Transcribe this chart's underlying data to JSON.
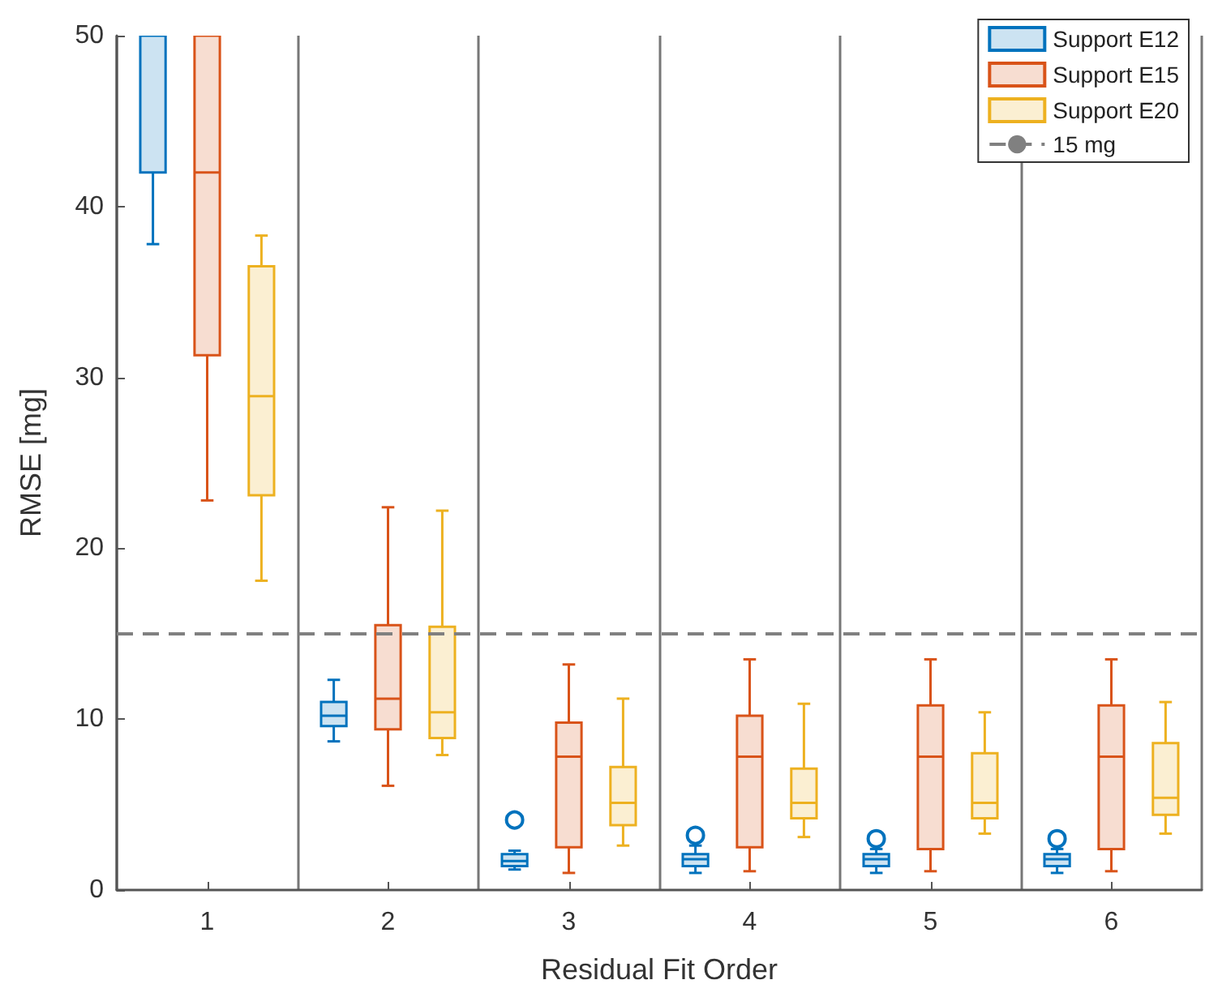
{
  "chart_data": {
    "type": "box",
    "xlabel": "Residual Fit Order",
    "ylabel": "RMSE [mg]",
    "categories": [
      "1",
      "2",
      "3",
      "4",
      "5",
      "6"
    ],
    "ylim": [
      0,
      50
    ],
    "yticks": [
      0,
      10,
      20,
      30,
      40,
      50
    ],
    "grid": "x",
    "legend": "top right",
    "ref_lines": [
      {
        "axis": "y",
        "value": 15,
        "label": "15 mg",
        "color": "#808080",
        "line_style": "dashed"
      }
    ],
    "series": [
      {
        "name": "Support E12",
        "color": "#0072bd",
        "boxes": [
          {
            "low": 37.8,
            "q1": 42,
            "q3": 50,
            "high": 50
          },
          {
            "low": 8.7,
            "q1": 9.6,
            "median": 10.2,
            "q3": 11.0,
            "high": 12.3
          },
          {
            "low": 1.2,
            "q1": 1.4,
            "median": 1.7,
            "q3": 2.1,
            "high": 2.3,
            "outliers": [
              4.1
            ]
          },
          {
            "low": 1.0,
            "q1": 1.4,
            "median": 1.8,
            "q3": 2.1,
            "high": 2.6,
            "outliers": [
              3.2
            ]
          },
          {
            "low": 1.0,
            "q1": 1.4,
            "median": 1.8,
            "q3": 2.1,
            "high": 2.4,
            "outliers": [
              3.0
            ]
          },
          {
            "low": 1.0,
            "q1": 1.4,
            "median": 1.8,
            "q3": 2.1,
            "high": 2.4,
            "outliers": [
              3.0
            ]
          }
        ]
      },
      {
        "name": "Support E15",
        "color": "#d95319",
        "boxes": [
          {
            "low": 22.8,
            "q1": 31.3,
            "median": 42,
            "q3": 50,
            "high": 50
          },
          {
            "low": 6.1,
            "q1": 9.4,
            "median": 11.2,
            "q3": 15.5,
            "high": 22.4
          },
          {
            "low": 1.0,
            "q1": 2.5,
            "median": 7.8,
            "q3": 9.8,
            "high": 13.2
          },
          {
            "low": 1.1,
            "q1": 2.5,
            "median": 7.8,
            "q3": 10.2,
            "high": 13.5
          },
          {
            "low": 1.1,
            "q1": 2.4,
            "median": 7.8,
            "q3": 10.8,
            "high": 13.5
          },
          {
            "low": 1.1,
            "q1": 2.4,
            "median": 7.8,
            "q3": 10.8,
            "high": 13.5
          }
        ]
      },
      {
        "name": "Support E20",
        "color": "#edb120",
        "boxes": [
          {
            "low": 18.1,
            "q1": 23.1,
            "median": 28.9,
            "q3": 36.5,
            "high": 38.3
          },
          {
            "low": 7.9,
            "q1": 8.9,
            "median": 10.4,
            "q3": 15.4,
            "high": 22.2
          },
          {
            "low": 2.6,
            "q1": 3.8,
            "median": 5.1,
            "q3": 7.2,
            "high": 11.2
          },
          {
            "low": 3.1,
            "q1": 4.2,
            "median": 5.1,
            "q3": 7.1,
            "high": 10.9
          },
          {
            "low": 3.3,
            "q1": 4.2,
            "median": 5.1,
            "q3": 8.0,
            "high": 10.4
          },
          {
            "low": 3.3,
            "q1": 4.4,
            "median": 5.4,
            "q3": 8.6,
            "high": 11.0
          }
        ]
      }
    ]
  }
}
